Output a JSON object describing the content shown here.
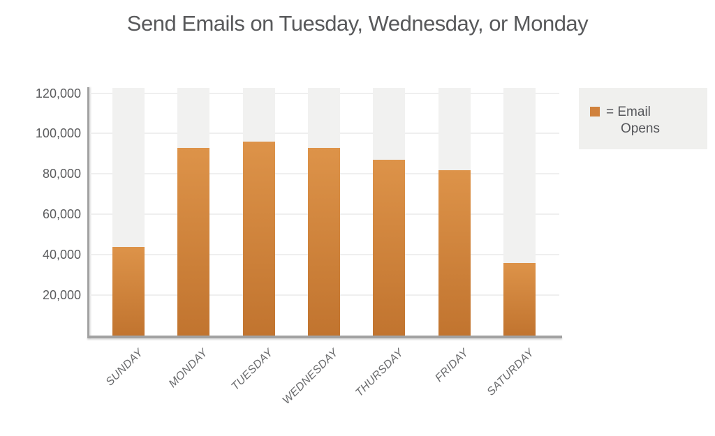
{
  "chart_data": {
    "type": "bar",
    "title": "Send Emails on Tuesday, Wednesday, or Monday",
    "categories": [
      "SUNDAY",
      "MONDAY",
      "TUESDAY",
      "WEDNESDAY",
      "THURSDAY",
      "FRIDAY",
      "SATURDAY"
    ],
    "values": [
      44000,
      93000,
      96000,
      93000,
      87000,
      82000,
      36000
    ],
    "series_name": "Email Opens",
    "xlabel": "",
    "ylabel": "",
    "ylim": [
      0,
      120000
    ],
    "yticks": [
      {
        "value": 20000,
        "label": "20,000"
      },
      {
        "value": 40000,
        "label": "40,000"
      },
      {
        "value": 60000,
        "label": "60,000"
      },
      {
        "value": 80000,
        "label": "80,000"
      },
      {
        "value": 100000,
        "label": "100,000"
      },
      {
        "value": 120000,
        "label": "120,000"
      }
    ],
    "grid": "horizontal",
    "legend_position": "top-right",
    "legend": {
      "line1": "= Email",
      "line2": "Opens"
    },
    "colors": {
      "bar_gradient_top": "#dd9349",
      "bar_gradient_bottom": "#c1742f",
      "bar_track": "#f1f1f0",
      "legend_swatch": "#d0813c",
      "legend_background": "#f0f0ee",
      "axis_line": "#a2a2a2",
      "gridline": "#efefef",
      "title_text": "#58595b",
      "tick_text": "#5b5c5e",
      "category_text": "#696a6c"
    }
  }
}
